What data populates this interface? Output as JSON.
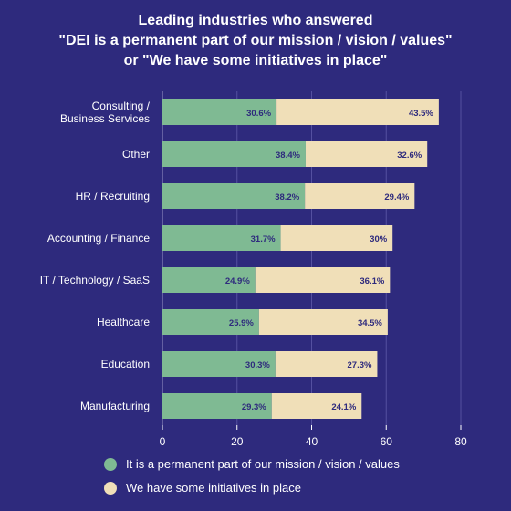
{
  "chart_data": {
    "type": "bar",
    "orientation": "horizontal",
    "stacked": true,
    "title_lines": [
      "Leading industries who answered",
      "\"DEI is a permanent part of our mission / vision / values\"",
      "or \"We have some initiatives in place\""
    ],
    "categories": [
      [
        "Consulting /",
        "Business Services"
      ],
      [
        "Other"
      ],
      [
        "HR / Recruiting"
      ],
      [
        "Accounting / Finance"
      ],
      [
        "IT / Technology / SaaS"
      ],
      [
        "Healthcare"
      ],
      [
        "Education"
      ],
      [
        "Manufacturing"
      ]
    ],
    "series": [
      {
        "name": "It is a permanent part of our mission / vision / values",
        "color": "#7fba93",
        "values": [
          30.6,
          38.4,
          38.2,
          31.7,
          24.9,
          25.9,
          30.3,
          29.3
        ],
        "labels": [
          "30.6%",
          "38.4%",
          "38.2%",
          "31.7%",
          "24.9%",
          "25.9%",
          "30.3%",
          "29.3%"
        ]
      },
      {
        "name": "We have some initiatives in place",
        "color": "#f0dfb8",
        "values": [
          43.5,
          32.6,
          29.4,
          30,
          36.1,
          34.5,
          27.3,
          24.1
        ],
        "labels": [
          "43.5%",
          "32.6%",
          "29.4%",
          "30%",
          "36.1%",
          "34.5%",
          "27.3%",
          "24.1%"
        ]
      }
    ],
    "xlim": [
      0,
      80
    ],
    "xticks": [
      "0",
      "20",
      "40",
      "60",
      "80"
    ],
    "grid": true,
    "legend": "bottom"
  },
  "colors": {
    "background": "#2e2a7d",
    "grid": "#5450a0",
    "data_label": "#2e2a7d"
  }
}
